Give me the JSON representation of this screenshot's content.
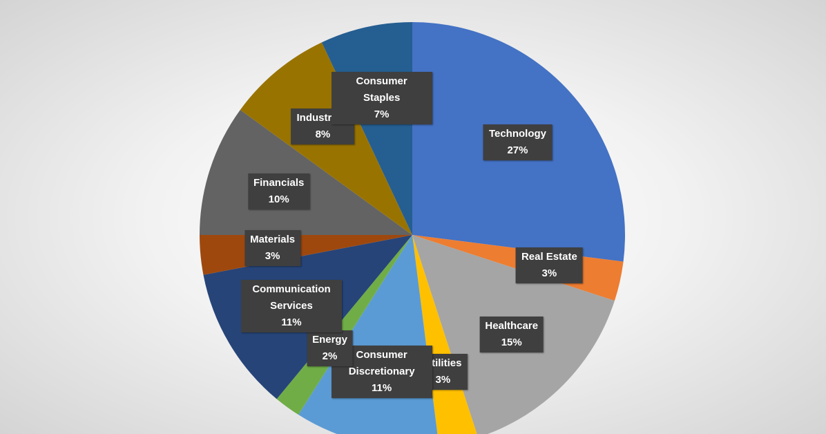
{
  "chart_data": {
    "type": "pie",
    "categories": [
      "Technology",
      "Real Estate",
      "Healthcare",
      "Utilities",
      "Consumer Discretionary",
      "Energy",
      "Communication Services",
      "Materials",
      "Financials",
      "Industrials",
      "Consumer Staples"
    ],
    "values": [
      27,
      3,
      15,
      3,
      11,
      2,
      11,
      3,
      10,
      8,
      7
    ],
    "value_labels": [
      "27%",
      "3%",
      "15%",
      "3%",
      "11%",
      "2%",
      "11%",
      "3%",
      "10%",
      "8%",
      "7%"
    ],
    "colors": [
      "#4472c4",
      "#ed7d31",
      "#a5a5a5",
      "#ffc000",
      "#5b9bd5",
      "#70ad47",
      "#264478",
      "#9e480e",
      "#636363",
      "#997300",
      "#255e91"
    ]
  }
}
